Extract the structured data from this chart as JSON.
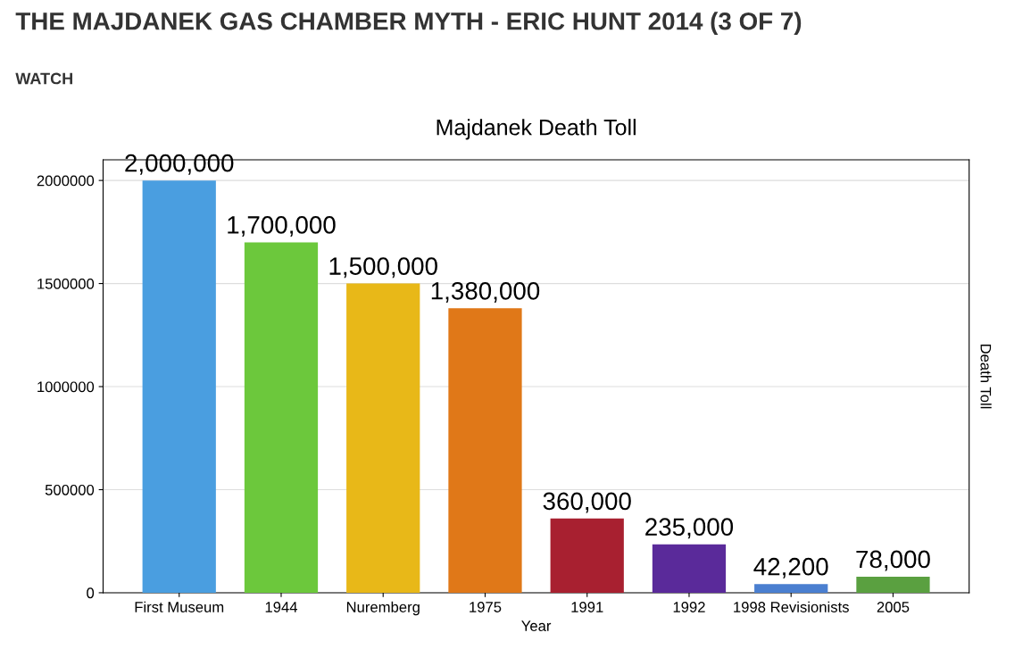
{
  "chart_data": {
    "type": "bar",
    "title": "Majdanek Death Toll",
    "xlabel": "Year",
    "ylabel": "Death Toll",
    "annotations": [
      "THE MAJDANEK GAS CHAMBER MYTH - ERIC HUNT 2014 (3 OF 7)",
      "WATCH"
    ],
    "categories": [
      "First Museum",
      "1944",
      "Nuremberg",
      "1975",
      "1991",
      "1992",
      "1998 Revisionists",
      "2005"
    ],
    "values": [
      2000000,
      1700000,
      1500000,
      1380000,
      360000,
      235000,
      42200,
      78000
    ],
    "value_labels": [
      "2,000,000",
      "1,700,000",
      "1,500,000",
      "1,380,000",
      "360,000",
      "235,000",
      "42,200",
      "78,000"
    ],
    "colors": [
      "#4a9ee0",
      "#6cc83c",
      "#e8b818",
      "#e07818",
      "#a82030",
      "#5a2a9a",
      "#4a7fd0",
      "#5aa040"
    ],
    "ylim": [
      0,
      2100000
    ],
    "yticks": [
      0,
      500000,
      1000000,
      1500000,
      2000000
    ],
    "grid": "y"
  }
}
